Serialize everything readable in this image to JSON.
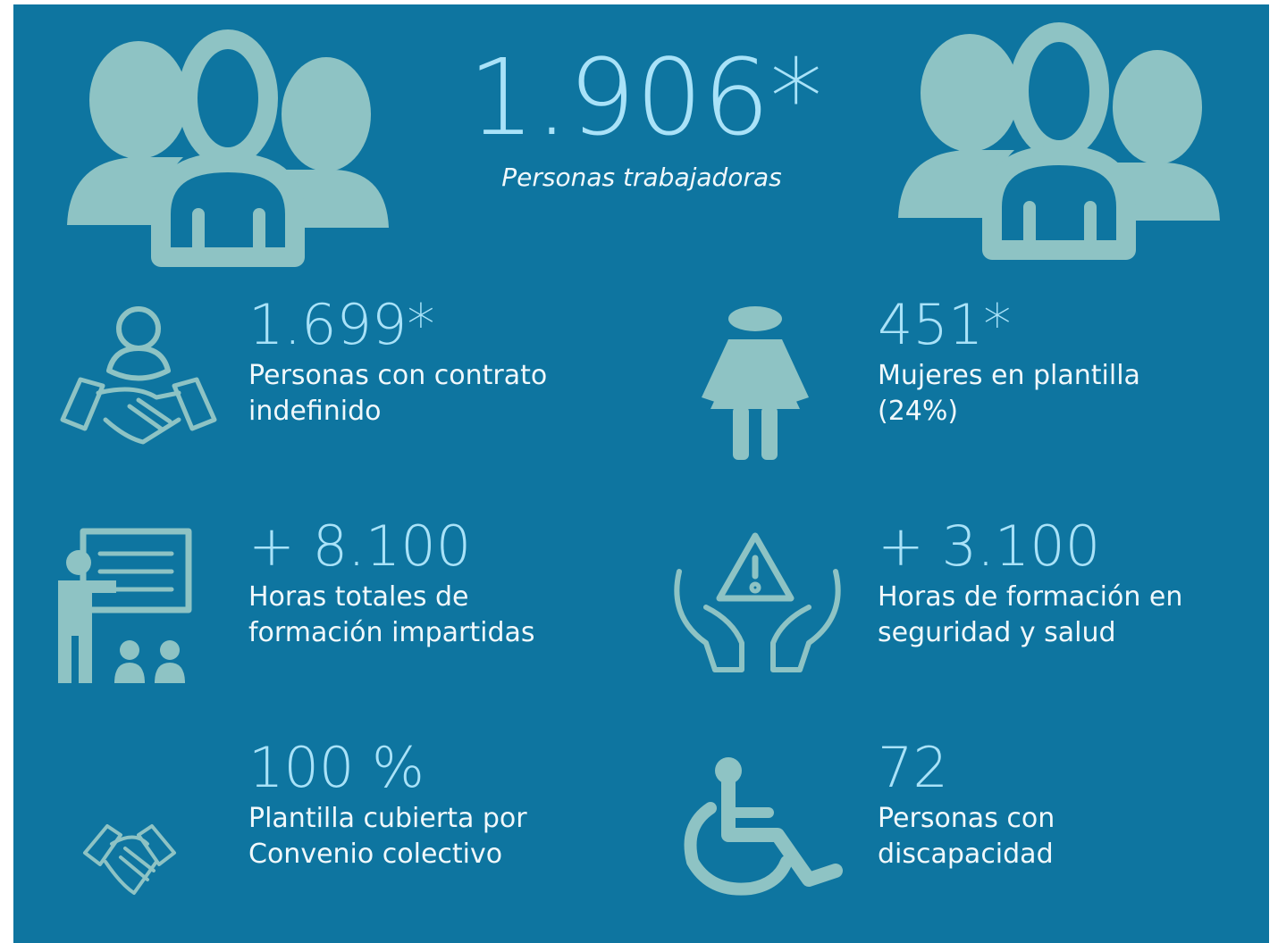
{
  "header": {
    "value": "1.906*",
    "label": "Personas trabajadoras"
  },
  "stats": [
    {
      "value": "1.699*",
      "lines": [
        "Personas con contrato",
        "indefinido"
      ]
    },
    {
      "value": "451*",
      "lines": [
        "Mujeres en plantilla",
        "(24%)"
      ]
    },
    {
      "value": "+ 8.100",
      "lines": [
        "Horas totales de",
        "formación impartidas"
      ]
    },
    {
      "value": "+ 3.100",
      "lines": [
        "Horas de formación en",
        "seguridad y salud"
      ]
    },
    {
      "value": "100 %",
      "lines": [
        "Plantilla cubierta por",
        "Convenio colectivo"
      ]
    },
    {
      "value": "72",
      "lines": [
        "Personas con",
        "discapacidad"
      ]
    }
  ]
}
